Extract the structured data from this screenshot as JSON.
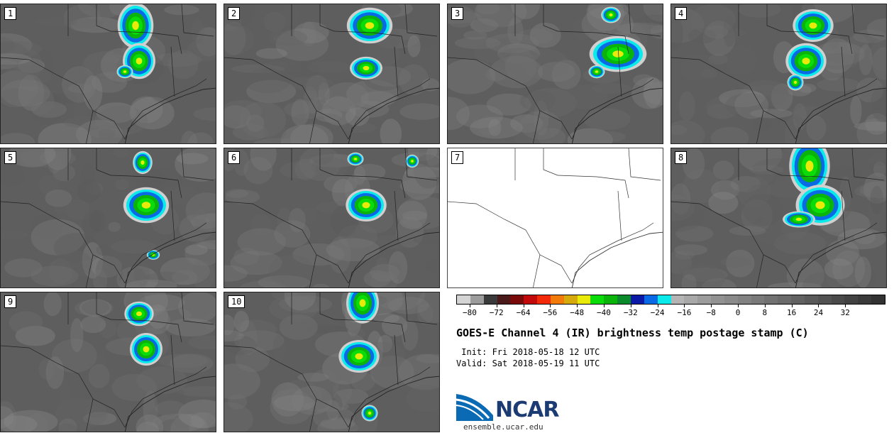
{
  "panels": [
    {
      "label": "1"
    },
    {
      "label": "2"
    },
    {
      "label": "3"
    },
    {
      "label": "4"
    },
    {
      "label": "5"
    },
    {
      "label": "6"
    },
    {
      "label": "7"
    },
    {
      "label": "8"
    },
    {
      "label": "9"
    },
    {
      "label": "10"
    }
  ],
  "colorbar": {
    "colors": [
      "#d4d4d4",
      "#9c9c9c",
      "#3a3a3a",
      "#4a1a1a",
      "#7a0a0a",
      "#c20a0a",
      "#f22a0a",
      "#f27a0a",
      "#d6aa0a",
      "#eaea0a",
      "#0adc0a",
      "#0ab40a",
      "#0a8a2a",
      "#0a1aa6",
      "#0a6ae6",
      "#0aeaea",
      "#b4b4b4",
      "#a8a8a8",
      "#9c9c9c",
      "#929292",
      "#8a8a8a",
      "#828282",
      "#7a7a7a",
      "#727272",
      "#6a6a6a",
      "#626262",
      "#5a5a5a",
      "#525252",
      "#4a4a4a",
      "#424242",
      "#3a3a3a",
      "#323232"
    ],
    "tick_labels": [
      "−80",
      "−72",
      "−64",
      "−56",
      "−48",
      "−40",
      "−32",
      "−24",
      "−16",
      "−8",
      "0",
      "8",
      "16",
      "24",
      "32"
    ]
  },
  "title": "GOES-E Channel 4 (IR) brightness temp postage stamp (C)",
  "init": " Init: Fri 2018-05-18 12 UTC",
  "valid": "Valid: Sat 2018-05-19 11 UTC",
  "logo": {
    "text": "NCAR",
    "url": "ensemble.ucar.edu",
    "color": "#1c3b73"
  }
}
